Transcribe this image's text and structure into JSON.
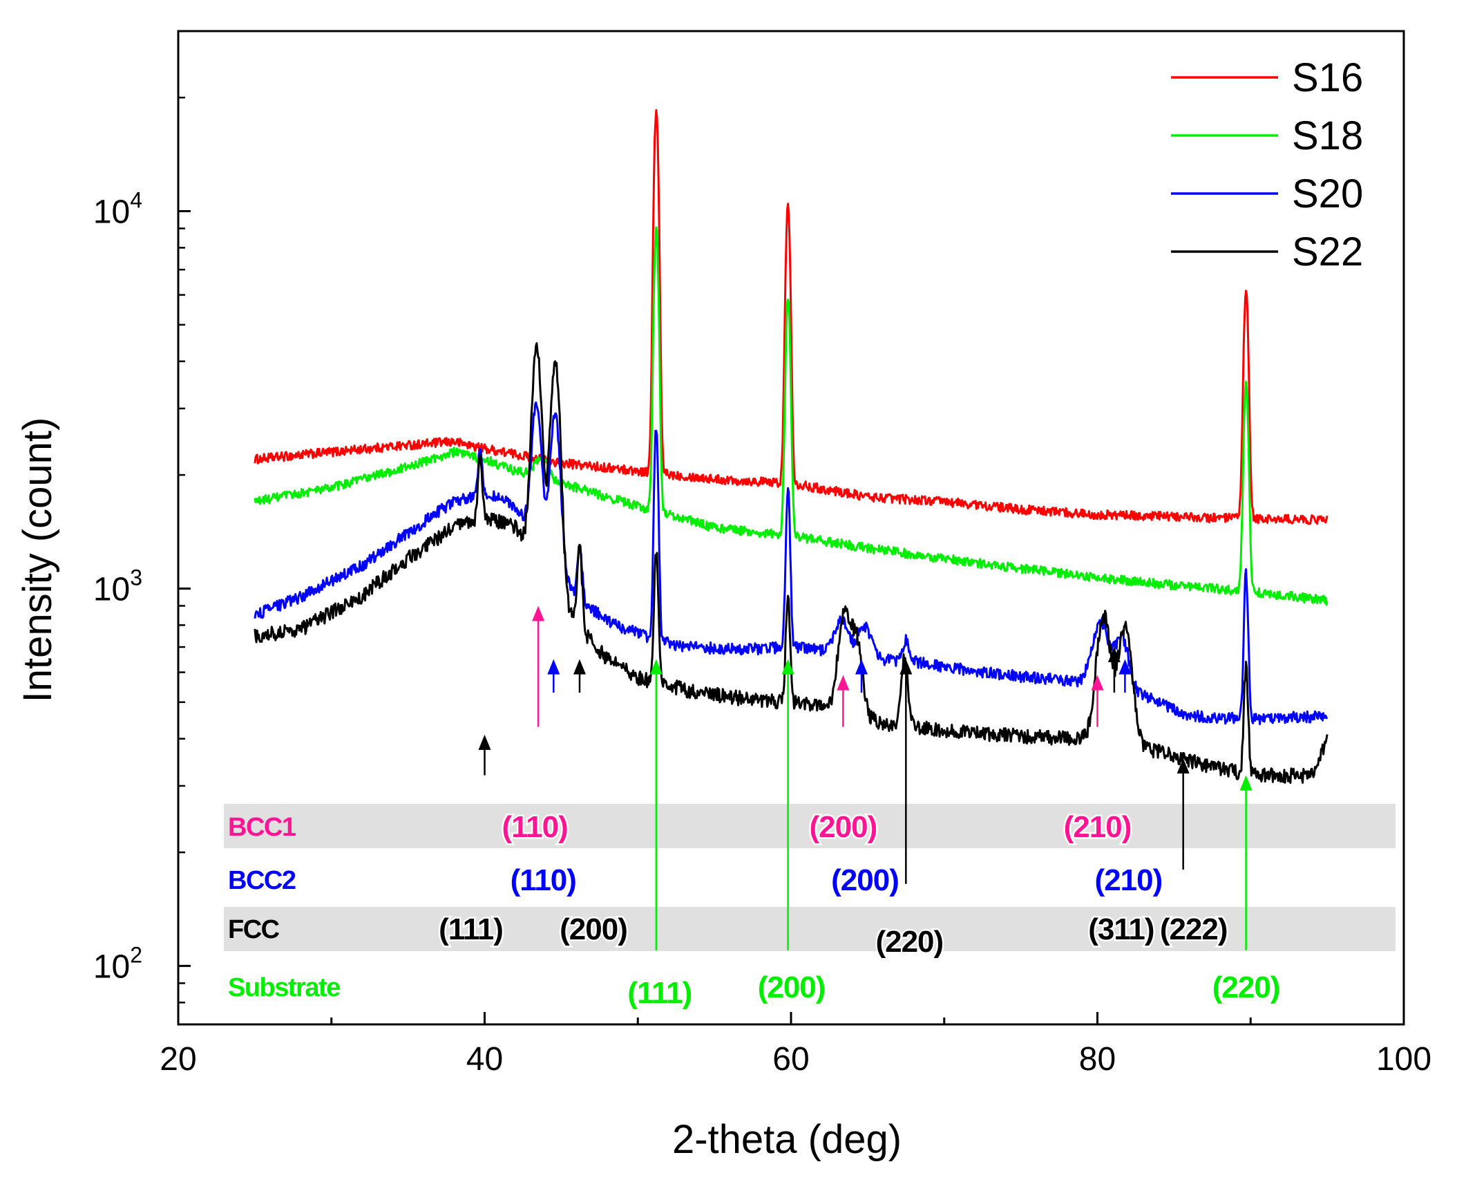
{
  "chart_data": {
    "type": "line",
    "title": "",
    "xlabel": "2-theta (deg)",
    "ylabel": "Intensity (count)",
    "xlim": [
      20,
      100
    ],
    "ylim": [
      70,
      30000
    ],
    "yscale": "log",
    "x_ticks": [
      20,
      40,
      60,
      80,
      100
    ],
    "x_tick_labels": [
      "20",
      "40",
      "60",
      "80",
      "100"
    ],
    "y_ticks": [
      {
        "value": 100,
        "base": "10",
        "exp": "2"
      },
      {
        "value": 1000,
        "base": "10",
        "exp": "3"
      },
      {
        "value": 10000,
        "base": "10",
        "exp": "4"
      }
    ],
    "legend": "top-right",
    "colors": {
      "S16": "#ff0000",
      "S18": "#00ee00",
      "S20": "#0000ff",
      "S22": "#000000",
      "BCC1": "#ff1493",
      "BCC2": "#0000ff",
      "FCC": "#000000",
      "Substrate": "#00ee00",
      "band": "#e0e0e0"
    },
    "series": [
      {
        "name": "S16",
        "color": "#ff0000",
        "noise": 0.028,
        "background": [
          [
            25,
            2200
          ],
          [
            30,
            2300
          ],
          [
            35,
            2400
          ],
          [
            38,
            2450
          ],
          [
            40,
            2350
          ],
          [
            45,
            2150
          ],
          [
            50,
            2050
          ],
          [
            55,
            1950
          ],
          [
            60,
            1900
          ],
          [
            65,
            1750
          ],
          [
            70,
            1700
          ],
          [
            75,
            1620
          ],
          [
            80,
            1570
          ],
          [
            85,
            1550
          ],
          [
            90,
            1530
          ],
          [
            95,
            1520
          ]
        ],
        "peaks": [
          {
            "center": 51.2,
            "height": 16500,
            "width": 0.35
          },
          {
            "center": 59.8,
            "height": 8500,
            "width": 0.35
          },
          {
            "center": 89.7,
            "height": 4700,
            "width": 0.35
          }
        ]
      },
      {
        "name": "S18",
        "color": "#00ee00",
        "noise": 0.028,
        "background": [
          [
            25,
            1700
          ],
          [
            30,
            1850
          ],
          [
            35,
            2100
          ],
          [
            38,
            2300
          ],
          [
            40,
            2200
          ],
          [
            42,
            2050
          ],
          [
            45,
            1900
          ],
          [
            48,
            1750
          ],
          [
            50,
            1650
          ],
          [
            55,
            1450
          ],
          [
            60,
            1380
          ],
          [
            65,
            1280
          ],
          [
            70,
            1200
          ],
          [
            75,
            1130
          ],
          [
            80,
            1070
          ],
          [
            85,
            1020
          ],
          [
            90,
            980
          ],
          [
            95,
            930
          ]
        ],
        "peaks": [
          {
            "center": 43.7,
            "height": 250,
            "width": 1.0
          },
          {
            "center": 51.2,
            "height": 7500,
            "width": 0.35
          },
          {
            "center": 59.8,
            "height": 4600,
            "width": 0.35
          },
          {
            "center": 89.7,
            "height": 2600,
            "width": 0.35
          }
        ]
      },
      {
        "name": "S20",
        "color": "#0000ff",
        "noise": 0.035,
        "background": [
          [
            25,
            850
          ],
          [
            28,
            950
          ],
          [
            32,
            1150
          ],
          [
            35,
            1400
          ],
          [
            38,
            1700
          ],
          [
            40,
            1800
          ],
          [
            42,
            1650
          ],
          [
            44,
            1200
          ],
          [
            46,
            950
          ],
          [
            48,
            820
          ],
          [
            50,
            760
          ],
          [
            53,
            700
          ],
          [
            57,
            690
          ],
          [
            60,
            700
          ],
          [
            63,
            680
          ],
          [
            65,
            650
          ],
          [
            68,
            640
          ],
          [
            70,
            620
          ],
          [
            74,
            590
          ],
          [
            78,
            570
          ],
          [
            80,
            560
          ],
          [
            83,
            520
          ],
          [
            86,
            460
          ],
          [
            90,
            450
          ],
          [
            95,
            460
          ]
        ],
        "peaks": [
          {
            "center": 39.7,
            "height": 500,
            "width": 0.3
          },
          {
            "center": 43.4,
            "height": 1800,
            "width": 0.7
          },
          {
            "center": 44.6,
            "height": 1800,
            "width": 0.7
          },
          {
            "center": 46.2,
            "height": 350,
            "width": 0.35
          },
          {
            "center": 51.2,
            "height": 1950,
            "width": 0.3
          },
          {
            "center": 59.8,
            "height": 1150,
            "width": 0.3
          },
          {
            "center": 63.3,
            "height": 150,
            "width": 1.0
          },
          {
            "center": 64.8,
            "height": 140,
            "width": 1.0
          },
          {
            "center": 67.5,
            "height": 90,
            "width": 0.5
          },
          {
            "center": 80.2,
            "height": 260,
            "width": 1.2
          },
          {
            "center": 81.6,
            "height": 200,
            "width": 1.0
          },
          {
            "center": 89.7,
            "height": 650,
            "width": 0.3
          }
        ]
      },
      {
        "name": "S22",
        "color": "#000000",
        "noise": 0.045,
        "background": [
          [
            25,
            750
          ],
          [
            28,
            780
          ],
          [
            32,
            950
          ],
          [
            35,
            1200
          ],
          [
            38,
            1450
          ],
          [
            40,
            1550
          ],
          [
            42,
            1450
          ],
          [
            44,
            1100
          ],
          [
            46,
            800
          ],
          [
            48,
            650
          ],
          [
            50,
            580
          ],
          [
            53,
            540
          ],
          [
            57,
            510
          ],
          [
            60,
            500
          ],
          [
            63,
            480
          ],
          [
            66,
            440
          ],
          [
            70,
            420
          ],
          [
            74,
            410
          ],
          [
            78,
            400
          ],
          [
            80,
            400
          ],
          [
            83,
            380
          ],
          [
            86,
            350
          ],
          [
            90,
            320
          ],
          [
            94,
            320
          ],
          [
            95,
            400
          ]
        ],
        "peaks": [
          {
            "center": 39.7,
            "height": 650,
            "width": 0.3
          },
          {
            "center": 43.4,
            "height": 3100,
            "width": 0.7
          },
          {
            "center": 44.6,
            "height": 3000,
            "width": 0.7
          },
          {
            "center": 46.2,
            "height": 500,
            "width": 0.35
          },
          {
            "center": 51.2,
            "height": 680,
            "width": 0.3
          },
          {
            "center": 59.8,
            "height": 450,
            "width": 0.3
          },
          {
            "center": 63.5,
            "height": 380,
            "width": 0.9
          },
          {
            "center": 64.3,
            "height": 250,
            "width": 0.8
          },
          {
            "center": 67.4,
            "height": 220,
            "width": 0.5
          },
          {
            "center": 80.4,
            "height": 450,
            "width": 1.0
          },
          {
            "center": 81.8,
            "height": 400,
            "width": 1.0
          },
          {
            "center": 89.7,
            "height": 300,
            "width": 0.3
          }
        ]
      }
    ],
    "phase_labels": [
      {
        "text": "BCC1",
        "color": "#ff1493",
        "row": 0
      },
      {
        "text": "BCC2",
        "color": "#0000ff",
        "row": 1
      },
      {
        "text": "FCC",
        "color": "#000000",
        "row": 2
      },
      {
        "text": "Substrate",
        "color": "#00ee00",
        "row": 3
      }
    ],
    "peak_markers": [
      {
        "phase": "BCC1",
        "label": "(110)",
        "x": 43.5,
        "color": "#ff1493",
        "arrow_head": 900,
        "line_to": 430
      },
      {
        "phase": "BCC1",
        "label": "(200)",
        "x": 63.4,
        "color": "#ff1493",
        "arrow_head": 590,
        "line_to": 430
      },
      {
        "phase": "BCC1",
        "label": "(210)",
        "x": 80.0,
        "color": "#ff1493",
        "arrow_head": 590,
        "line_to": 430
      },
      {
        "phase": "BCC2",
        "label": "(110)",
        "x": 44.5,
        "color": "#0000ff",
        "arrow_head": 650,
        "line_to": 530
      },
      {
        "phase": "BCC2",
        "label": "(200)",
        "x": 64.6,
        "color": "#0000ff",
        "arrow_head": 650,
        "line_to": 530
      },
      {
        "phase": "BCC2",
        "label": "(210)",
        "x": 81.8,
        "color": "#0000ff",
        "arrow_head": 650,
        "line_to": 530
      },
      {
        "phase": "FCC",
        "label": "(111)",
        "x": 40.0,
        "color": "#000000",
        "arrow_head": 410,
        "line_to": 320
      },
      {
        "phase": "FCC",
        "label": "(200)",
        "x": 46.2,
        "color": "#000000",
        "arrow_head": 650,
        "line_to": 530
      },
      {
        "phase": "FCC",
        "label": "(220)",
        "x": 67.5,
        "color": "#000000",
        "arrow_head": 650,
        "line_to": 165
      },
      {
        "phase": "FCC",
        "label": "(311)",
        "x": 81.1,
        "color": "#000000",
        "arrow_head": 700,
        "line_to": 530
      },
      {
        "phase": "FCC",
        "label": "(222)",
        "x": 85.6,
        "color": "#000000",
        "arrow_head": 355,
        "line_to": 180
      },
      {
        "phase": "Substrate",
        "label": "(111)",
        "x": 51.2,
        "color": "#00ee00",
        "arrow_head": 650,
        "line_to": 110
      },
      {
        "phase": "Substrate",
        "label": "(200)",
        "x": 59.8,
        "color": "#00ee00",
        "arrow_head": 650,
        "line_to": 110
      },
      {
        "phase": "Substrate",
        "label": "(220)",
        "x": 89.7,
        "color": "#00ee00",
        "arrow_head": 320,
        "line_to": 110
      }
    ]
  }
}
